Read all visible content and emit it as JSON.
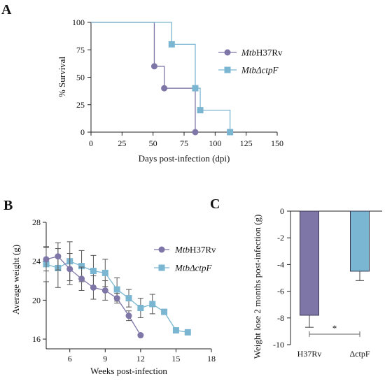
{
  "panels": {
    "a": "A",
    "b": "B",
    "c": "C"
  },
  "chart_data": [
    {
      "id": "A",
      "type": "line",
      "step": true,
      "xlabel": "Days post-infection (dpi)",
      "ylabel": "% Survival",
      "xlim": [
        0,
        150
      ],
      "ylim": [
        0,
        100
      ],
      "xticks": [
        0,
        25,
        50,
        75,
        100,
        125,
        150
      ],
      "yticks": [
        0,
        25,
        50,
        75,
        100
      ],
      "legend_position": "right",
      "series": [
        {
          "name_prefix": "Mtb",
          "name_suffix": "H37Rv",
          "color": "#7f76a8",
          "marker": "circle",
          "x": [
            0,
            51,
            59,
            84
          ],
          "y": [
            100,
            60,
            40,
            0
          ],
          "markers_x": [
            51,
            59,
            84
          ],
          "markers_y": [
            60,
            40,
            0
          ]
        },
        {
          "name_prefix": "Mtb",
          "name_suffix": "ΔctpF",
          "color": "#7ab6d2",
          "marker": "square",
          "x": [
            0,
            65,
            84,
            88,
            112
          ],
          "y": [
            100,
            80,
            40,
            20,
            0
          ],
          "markers_x": [
            65,
            84,
            88,
            112
          ],
          "markers_y": [
            80,
            40,
            20,
            0
          ]
        }
      ]
    },
    {
      "id": "B",
      "type": "line",
      "xlabel": "Weeks post-infection",
      "ylabel": "Average weight (g)",
      "xlim": [
        4,
        18
      ],
      "ylim": [
        15,
        28
      ],
      "xticks": [
        6,
        9,
        12,
        15,
        18
      ],
      "yticks": [
        16,
        20,
        24,
        28
      ],
      "legend_position": "right",
      "series": [
        {
          "name_prefix": "Mtb",
          "name_suffix": "H37Rv",
          "color": "#7f76a8",
          "marker": "circle",
          "x": [
            4,
            5,
            6,
            7,
            8,
            9,
            10,
            11,
            12
          ],
          "y": [
            24.2,
            24.5,
            23.2,
            22.2,
            21.3,
            21.0,
            20.2,
            18.4,
            16.4
          ],
          "err": [
            1.2,
            1.4,
            1.6,
            1.2,
            1.2,
            1.0,
            0.5,
            0.5,
            0
          ]
        },
        {
          "name_prefix": "Mtb",
          "name_suffix": "ΔctpF",
          "color": "#7ab6d2",
          "marker": "square",
          "x": [
            4,
            5,
            6,
            7,
            8,
            9,
            10,
            11,
            12,
            13,
            14,
            15,
            16
          ],
          "y": [
            23.7,
            23.3,
            24.0,
            23.5,
            23.0,
            22.8,
            21.1,
            20.2,
            19.2,
            19.6,
            18.8,
            16.9,
            16.7
          ],
          "err": [
            1.8,
            2.0,
            2.0,
            1.6,
            1.6,
            1.4,
            1.2,
            0.9,
            1.0,
            1.0,
            0,
            0,
            0
          ]
        }
      ]
    },
    {
      "id": "C",
      "type": "bar",
      "xlabel": "",
      "ylabel": "Weight lose 2 months post-infection (g)",
      "ylim": [
        -10,
        0
      ],
      "yticks": [
        0,
        -2,
        -4,
        -6,
        -8,
        -10
      ],
      "categories": [
        "H37Rv",
        "ΔctpF"
      ],
      "values": [
        -7.8,
        -4.5
      ],
      "errors": [
        0.9,
        0.7
      ],
      "colors": [
        "#7f76a8",
        "#7ab6d2"
      ],
      "significance": "*"
    }
  ]
}
